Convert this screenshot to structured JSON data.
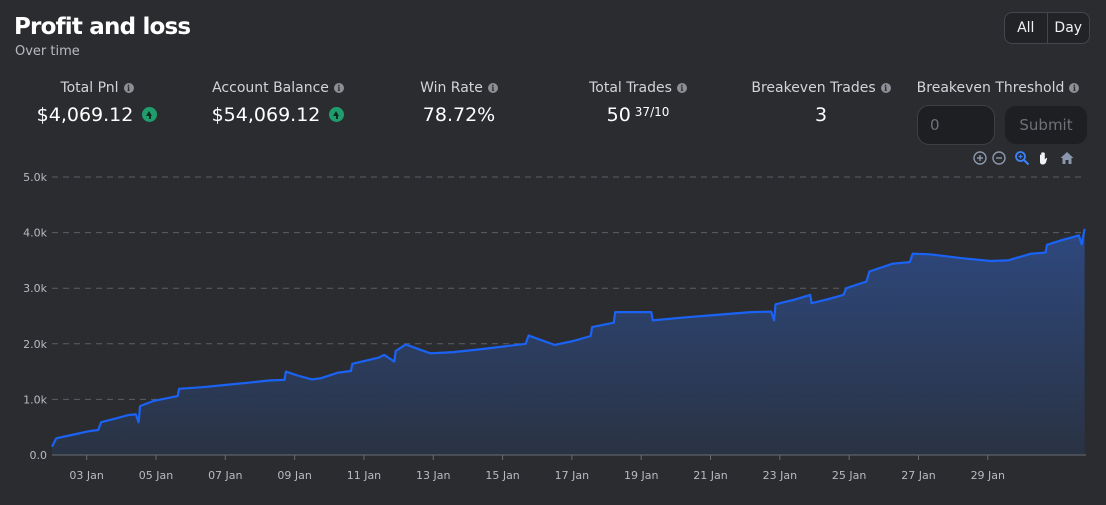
{
  "header": {
    "title": "Profit and loss",
    "subtitle": "Over time"
  },
  "range": {
    "all_label": "All",
    "day_label": "Day",
    "selected": "All"
  },
  "stats": [
    {
      "label": "Total Pnl",
      "value": "$4,069.12",
      "trend": "up"
    },
    {
      "label": "Account Balance",
      "value": "$54,069.12",
      "trend": "up"
    },
    {
      "label": "Win Rate",
      "value": "78.72%"
    },
    {
      "label": "Total Trades",
      "value": "50",
      "sup": "37/10"
    },
    {
      "label": "Breakeven Trades",
      "value": "3"
    }
  ],
  "threshold": {
    "label": "Breakeven Threshold",
    "placeholder": "0",
    "submit_label": "Submit"
  },
  "toolbar": [
    "zoom-in-icon",
    "zoom-out-icon",
    "selection-zoom-icon",
    "pan-hand-icon",
    "reset-home-icon"
  ],
  "colors": {
    "line": "#1a63f5",
    "fill_top": "#2e4a83",
    "fill_bottom": "#2a3344",
    "positive": "#1f9d6d",
    "toolbar_active": "#3a82f6"
  },
  "chart_data": {
    "type": "area",
    "title": "",
    "xlabel": "",
    "ylabel": "",
    "ylim": [
      0,
      5000
    ],
    "xlim": [
      "2025-01-02T00:00",
      "2025-01-31T20:00"
    ],
    "y_ticks": [
      "0.0",
      "1.0k",
      "2.0k",
      "3.0k",
      "4.0k",
      "5.0k"
    ],
    "y_tick_values": [
      0,
      1000,
      2000,
      3000,
      4000,
      5000
    ],
    "x_ticks": [
      "03 Jan",
      "05 Jan",
      "07 Jan",
      "09 Jan",
      "11 Jan",
      "13 Jan",
      "15 Jan",
      "17 Jan",
      "19 Jan",
      "21 Jan",
      "23 Jan",
      "25 Jan",
      "27 Jan",
      "29 Jan"
    ],
    "x_tick_dates": [
      "2025-01-03",
      "2025-01-05",
      "2025-01-07",
      "2025-01-09",
      "2025-01-11",
      "2025-01-13",
      "2025-01-15",
      "2025-01-17",
      "2025-01-19",
      "2025-01-21",
      "2025-01-23",
      "2025-01-25",
      "2025-01-27",
      "2025-01-29"
    ],
    "grid": true,
    "series": [
      {
        "points": [
          [
            "2025-01-02T00:00",
            150
          ],
          [
            "2025-01-02T03:00",
            300
          ],
          [
            "2025-01-02T12:00",
            350
          ],
          [
            "2025-01-03T02:00",
            430
          ],
          [
            "2025-01-03T08:00",
            450
          ],
          [
            "2025-01-03T10:00",
            590
          ],
          [
            "2025-01-03T19:00",
            650
          ],
          [
            "2025-01-04T05:00",
            720
          ],
          [
            "2025-01-04T10:00",
            730
          ],
          [
            "2025-01-04T12:00",
            590
          ],
          [
            "2025-01-04T13:00",
            880
          ],
          [
            "2025-01-04T22:00",
            970
          ],
          [
            "2025-01-05T15:00",
            1060
          ],
          [
            "2025-01-05T16:00",
            1190
          ],
          [
            "2025-01-06T08:00",
            1220
          ],
          [
            "2025-01-07T04:00",
            1270
          ],
          [
            "2025-01-07T16:00",
            1300
          ],
          [
            "2025-01-08T06:00",
            1340
          ],
          [
            "2025-01-08T17:00",
            1350
          ],
          [
            "2025-01-08T18:00",
            1500
          ],
          [
            "2025-01-09T02:00",
            1430
          ],
          [
            "2025-01-09T12:00",
            1360
          ],
          [
            "2025-01-09T18:00",
            1380
          ],
          [
            "2025-01-10T06:00",
            1480
          ],
          [
            "2025-01-10T15:00",
            1510
          ],
          [
            "2025-01-10T16:00",
            1640
          ],
          [
            "2025-01-11T10:00",
            1750
          ],
          [
            "2025-01-11T14:00",
            1800
          ],
          [
            "2025-01-11T21:00",
            1680
          ],
          [
            "2025-01-11T22:00",
            1870
          ],
          [
            "2025-01-12T05:00",
            1990
          ],
          [
            "2025-01-12T12:00",
            1920
          ],
          [
            "2025-01-12T22:00",
            1830
          ],
          [
            "2025-01-13T14:00",
            1850
          ],
          [
            "2025-01-14T08:00",
            1900
          ],
          [
            "2025-01-15T00:00",
            1950
          ],
          [
            "2025-01-15T16:00",
            2000
          ],
          [
            "2025-01-15T18:00",
            2150
          ],
          [
            "2025-01-15T23:00",
            2100
          ],
          [
            "2025-01-16T12:00",
            1980
          ],
          [
            "2025-01-17T01:00",
            2050
          ],
          [
            "2025-01-17T13:00",
            2140
          ],
          [
            "2025-01-17T14:00",
            2300
          ],
          [
            "2025-01-18T05:00",
            2380
          ],
          [
            "2025-01-18T06:00",
            2570
          ],
          [
            "2025-01-19T07:00",
            2570
          ],
          [
            "2025-01-19T08:00",
            2420
          ],
          [
            "2025-01-20T04:00",
            2470
          ],
          [
            "2025-01-21T04:00",
            2520
          ],
          [
            "2025-01-22T04:00",
            2570
          ],
          [
            "2025-01-22T18:00",
            2580
          ],
          [
            "2025-01-22T20:00",
            2420
          ],
          [
            "2025-01-22T21:00",
            2710
          ],
          [
            "2025-01-23T11:00",
            2800
          ],
          [
            "2025-01-23T21:00",
            2880
          ],
          [
            "2025-01-23T22:00",
            2730
          ],
          [
            "2025-01-24T09:00",
            2800
          ],
          [
            "2025-01-24T20:00",
            2880
          ],
          [
            "2025-01-24T22:00",
            3000
          ],
          [
            "2025-01-25T12:00",
            3120
          ],
          [
            "2025-01-25T14:00",
            3300
          ],
          [
            "2025-01-26T06:00",
            3440
          ],
          [
            "2025-01-26T18:00",
            3470
          ],
          [
            "2025-01-26T20:00",
            3620
          ],
          [
            "2025-01-27T08:00",
            3610
          ],
          [
            "2025-01-28T06:00",
            3540
          ],
          [
            "2025-01-29T02:00",
            3490
          ],
          [
            "2025-01-29T14:00",
            3500
          ],
          [
            "2025-01-30T06:00",
            3620
          ],
          [
            "2025-01-30T16:00",
            3640
          ],
          [
            "2025-01-30T17:00",
            3780
          ],
          [
            "2025-01-31T04:00",
            3870
          ],
          [
            "2025-01-31T15:00",
            3950
          ],
          [
            "2025-01-31T17:00",
            3790
          ],
          [
            "2025-01-31T19:00",
            4069
          ]
        ]
      }
    ]
  }
}
